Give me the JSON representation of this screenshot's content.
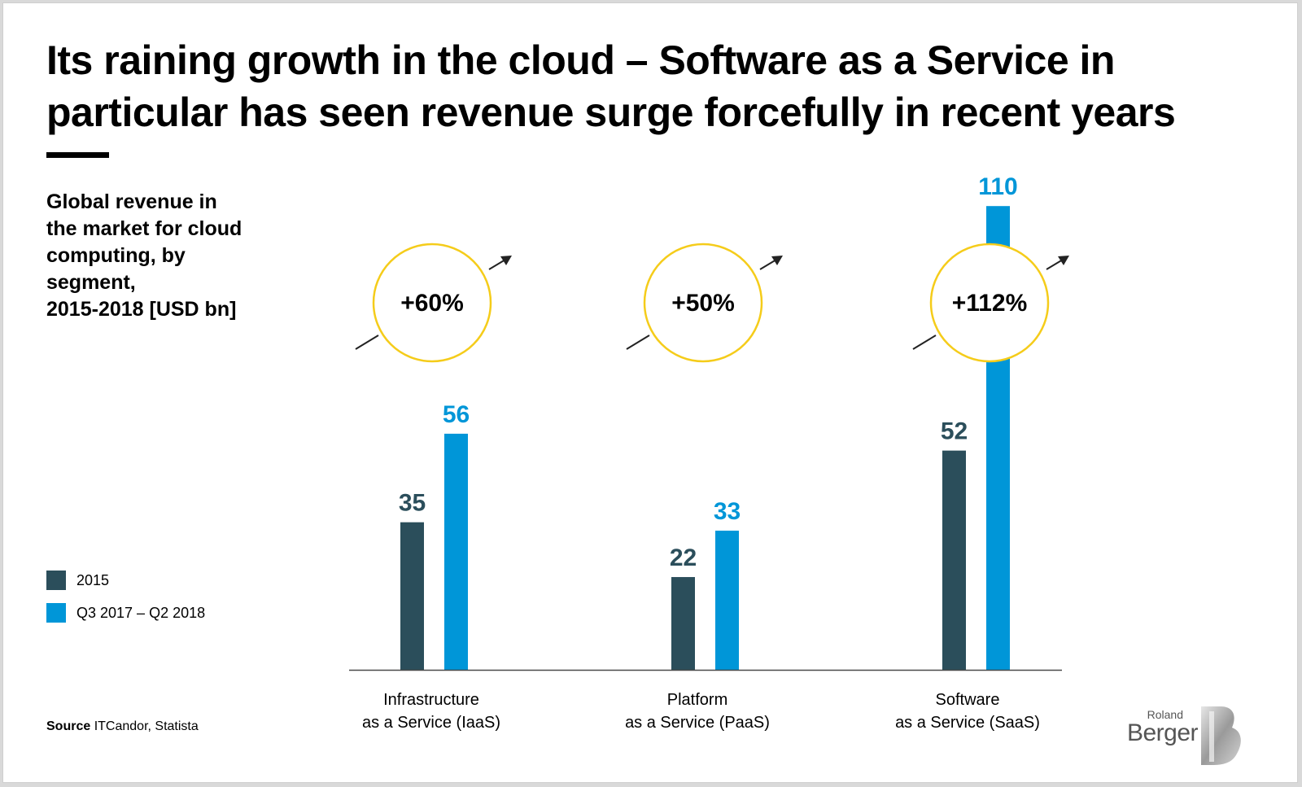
{
  "title_lines": [
    "Its raining growth in the cloud – Software as a Service in",
    "particular has seen revenue surge forcefully in recent years"
  ],
  "subtitle_lines": [
    "Global revenue in",
    "the market for cloud",
    "computing, by",
    "segment,",
    "2015-2018 [USD bn]"
  ],
  "legend": [
    {
      "label": "2015",
      "color": "#2b4e5b"
    },
    {
      "label": "Q3 2017 – Q2 2018",
      "color": "#0096d8"
    }
  ],
  "source": {
    "label": "Source",
    "text": "ITCandor, Statista"
  },
  "logo": {
    "small": "Roland",
    "large": "Berger"
  },
  "colors": {
    "dark": "#2b4e5b",
    "blue": "#0096d8",
    "circle": "#f5cc1a",
    "arrow": "#222222",
    "axis": "#4a4a4a"
  },
  "chart_data": {
    "type": "bar",
    "categories": [
      [
        "Infrastructure",
        "as a Service (IaaS)"
      ],
      [
        "Platform",
        "as a Service (PaaS)"
      ],
      [
        "Software",
        "as a Service (SaaS)"
      ]
    ],
    "series": [
      {
        "name": "2015",
        "values": [
          35,
          22,
          52
        ],
        "color": "#2b4e5b"
      },
      {
        "name": "Q3 2017 – Q2 2018",
        "values": [
          56,
          33,
          110
        ],
        "color": "#0096d8"
      }
    ],
    "growth_labels": [
      "+60%",
      "+50%",
      "+112%"
    ],
    "ylim": [
      0,
      110
    ],
    "value_labels": true,
    "grid": false,
    "legend_position": "left"
  }
}
